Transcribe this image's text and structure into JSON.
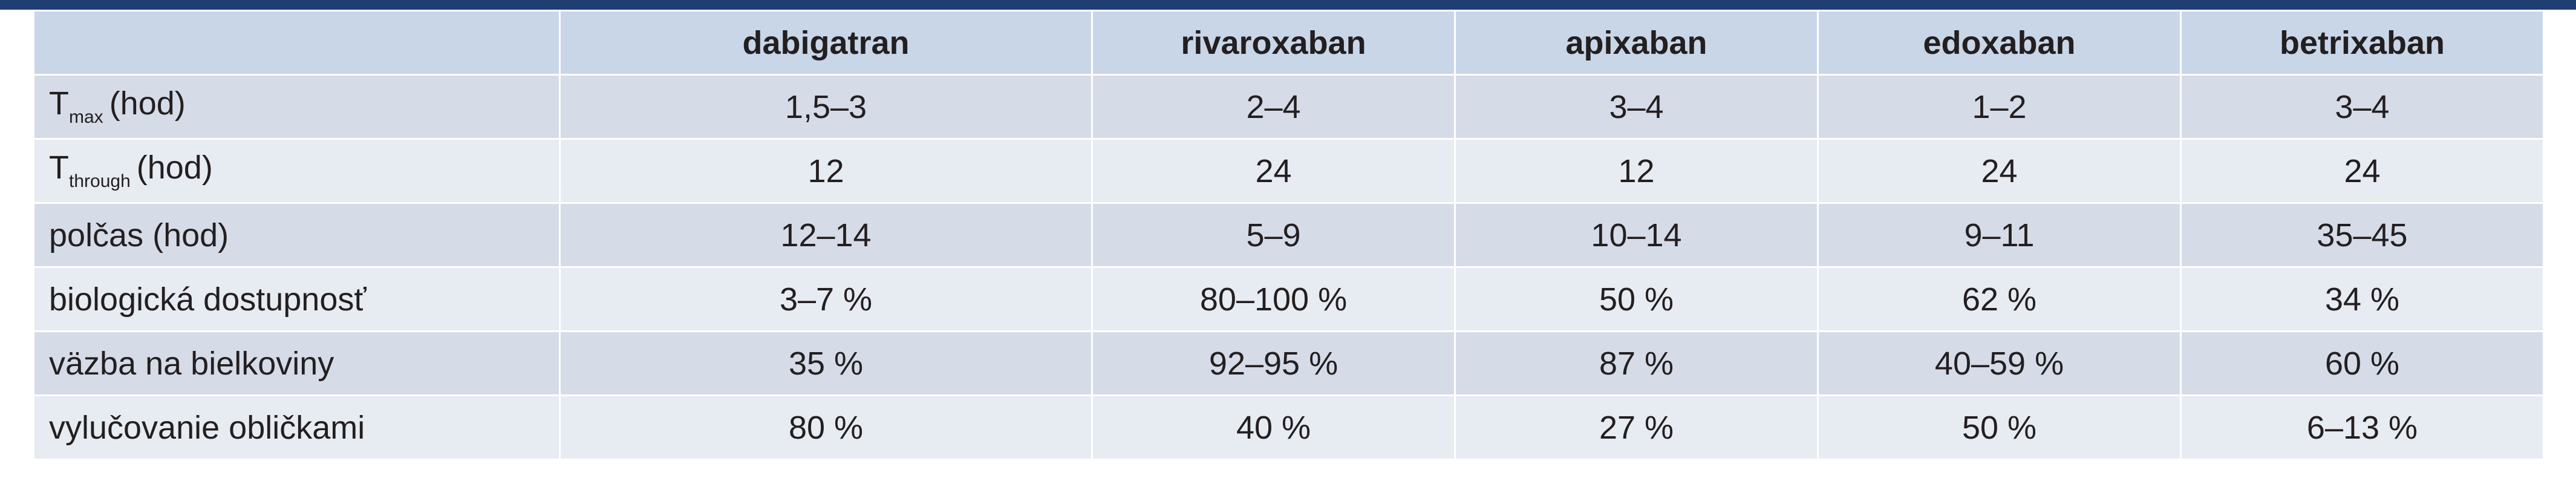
{
  "table": {
    "columns": [
      "dabigatran",
      "rivaroxaban",
      "apixaban",
      "edoxaban",
      "betrixaban"
    ],
    "rows": [
      {
        "label_main": "T",
        "label_sub": "max",
        "label_rest": "(hod)",
        "values": [
          "1,5–3",
          "2–4",
          "3–4",
          "1–2",
          "3–4"
        ]
      },
      {
        "label_main": "T",
        "label_sub": "through",
        "label_rest": "(hod)",
        "values": [
          "12",
          "24",
          "12",
          "24",
          "24"
        ]
      },
      {
        "label_main": "polčas (hod)",
        "label_sub": "",
        "label_rest": "",
        "values": [
          "12–14",
          "5–9",
          "10–14",
          "9–11",
          "35–45"
        ]
      },
      {
        "label_main": "biologická dostupnosť",
        "label_sub": "",
        "label_rest": "",
        "values": [
          "3–7 %",
          "80–100 %",
          "50 %",
          "62 %",
          "34 %"
        ]
      },
      {
        "label_main": "väzba na bielkoviny",
        "label_sub": "",
        "label_rest": "",
        "values": [
          "35 %",
          "92–95 %",
          "87 %",
          "40–59 %",
          "60 %"
        ]
      },
      {
        "label_main": "vylučovanie obličkami",
        "label_sub": "",
        "label_rest": "",
        "values": [
          "80 %",
          "40 %",
          "27 %",
          "50 %",
          "6–13 %"
        ]
      }
    ]
  },
  "colors": {
    "top_bar": "#1f3f73",
    "header_bg": "#c9d6e8",
    "row_odd_bg": "#d5dce8",
    "row_even_bg": "#e7ebf2"
  }
}
